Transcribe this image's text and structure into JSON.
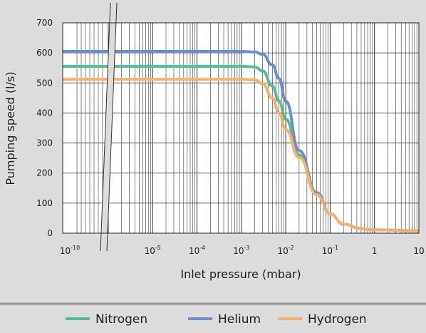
{
  "chart_data": {
    "type": "line",
    "xlabel": "Inlet pressure (mbar)",
    "ylabel": "Pumping speed (l/s)",
    "x_scale": "log",
    "x_axis_break": true,
    "ylim": [
      0,
      700
    ],
    "y_ticks": [
      0,
      100,
      200,
      300,
      400,
      500,
      600,
      700
    ],
    "x_tick_labels": [
      {
        "x": 1e-10,
        "base": "10",
        "exp": "-10"
      },
      {
        "x": 1e-05,
        "base": "10",
        "exp": "-5"
      },
      {
        "x": 0.0001,
        "base": "10",
        "exp": "-4"
      },
      {
        "x": 0.001,
        "base": "10",
        "exp": "-3"
      },
      {
        "x": 0.01,
        "base": "10",
        "exp": "-2"
      },
      {
        "x": 0.1,
        "base": "10",
        "exp": "-1"
      },
      {
        "x": 1,
        "base": "1",
        "exp": ""
      },
      {
        "x": 10,
        "base": "10",
        "exp": ""
      }
    ],
    "grid": true,
    "legend_position": "bottom",
    "series": [
      {
        "name": "Nitrogen",
        "color": "#4fbf9a",
        "points": [
          [
            1e-10,
            555
          ],
          [
            1e-06,
            555
          ],
          [
            0.001,
            555
          ],
          [
            0.002,
            553
          ],
          [
            0.003,
            540
          ],
          [
            0.005,
            490
          ],
          [
            0.007,
            440
          ],
          [
            0.01,
            380
          ],
          [
            0.02,
            260
          ],
          [
            0.05,
            130
          ],
          [
            0.1,
            65
          ],
          [
            0.2,
            30
          ],
          [
            0.5,
            15
          ],
          [
            1,
            11
          ],
          [
            10,
            8
          ]
        ]
      },
      {
        "name": "Helium",
        "color": "#6a8fd0",
        "points": [
          [
            1e-10,
            605
          ],
          [
            1e-06,
            605
          ],
          [
            0.001,
            605
          ],
          [
            0.002,
            603
          ],
          [
            0.003,
            595
          ],
          [
            0.005,
            560
          ],
          [
            0.007,
            515
          ],
          [
            0.01,
            440
          ],
          [
            0.02,
            275
          ],
          [
            0.05,
            135
          ],
          [
            0.1,
            65
          ],
          [
            0.2,
            30
          ],
          [
            0.5,
            15
          ],
          [
            1,
            11
          ],
          [
            10,
            8
          ]
        ]
      },
      {
        "name": "Hydrogen",
        "color": "#f5b06a",
        "points": [
          [
            1e-10,
            512
          ],
          [
            1e-06,
            512
          ],
          [
            0.001,
            512
          ],
          [
            0.002,
            510
          ],
          [
            0.003,
            498
          ],
          [
            0.005,
            450
          ],
          [
            0.007,
            400
          ],
          [
            0.01,
            345
          ],
          [
            0.02,
            252
          ],
          [
            0.05,
            128
          ],
          [
            0.1,
            65
          ],
          [
            0.2,
            30
          ],
          [
            0.5,
            15
          ],
          [
            1,
            11
          ],
          [
            10,
            8
          ]
        ]
      }
    ]
  }
}
